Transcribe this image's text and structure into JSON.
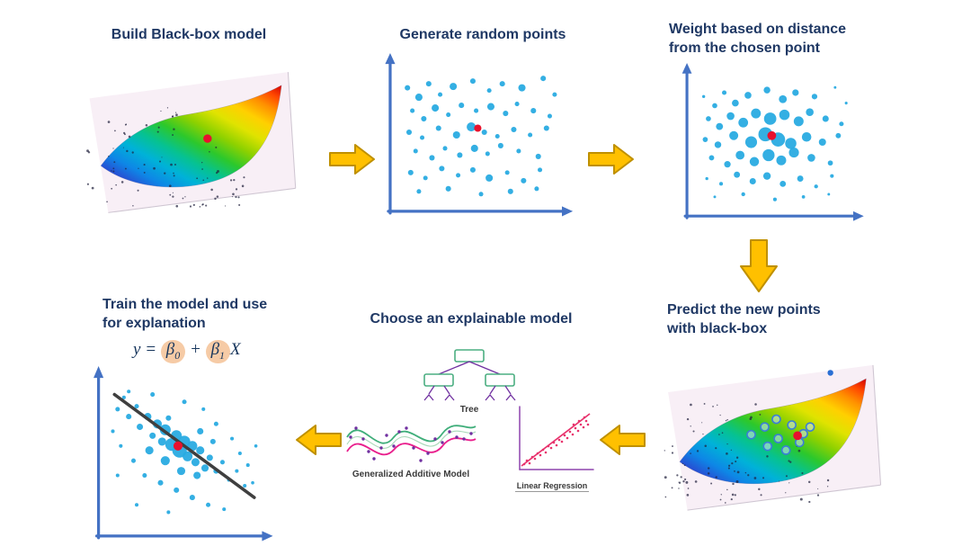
{
  "colors": {
    "title": "#1F3864",
    "dot": "#29ABE2",
    "red_dot": "#E8112D",
    "axis": "#4472C4",
    "arrow_fill": "#FFC000",
    "arrow_stroke": "#BF9000",
    "regression_line": "#3F3F3F",
    "beta_highlight": "#F6CBA6",
    "tree_box": "#4CAF82",
    "tree_line": "#7030A0",
    "gam_green": "#3FAE7A",
    "gam_pink": "#E91E8C",
    "gam_dot": "#7030A0",
    "lr_accent": "#E8336D",
    "lr_axis": "#8E44AD"
  },
  "steps": {
    "build": {
      "title": "Build Black-box model",
      "figure": {
        "seed": 7,
        "red": [
          140,
          95
        ]
      }
    },
    "generate": {
      "title": "Generate random points",
      "red_point": [
        48,
        55,
        4
      ],
      "points": [
        [
          5,
          85,
          3
        ],
        [
          12,
          78,
          4
        ],
        [
          18,
          88,
          3
        ],
        [
          25,
          80,
          2.5
        ],
        [
          33,
          86,
          4
        ],
        [
          45,
          90,
          3
        ],
        [
          55,
          83,
          2.5
        ],
        [
          63,
          88,
          3
        ],
        [
          75,
          85,
          4
        ],
        [
          88,
          92,
          3
        ],
        [
          95,
          80,
          2.5
        ],
        [
          8,
          68,
          2.5
        ],
        [
          15,
          62,
          3
        ],
        [
          22,
          70,
          4
        ],
        [
          30,
          65,
          2.5
        ],
        [
          38,
          72,
          3
        ],
        [
          47,
          68,
          2.5
        ],
        [
          56,
          71,
          4
        ],
        [
          65,
          66,
          3
        ],
        [
          72,
          73,
          2.5
        ],
        [
          82,
          68,
          3
        ],
        [
          92,
          64,
          2.5
        ],
        [
          6,
          52,
          3
        ],
        [
          14,
          48,
          2.5
        ],
        [
          24,
          55,
          3
        ],
        [
          35,
          50,
          4
        ],
        [
          44,
          56,
          5
        ],
        [
          52,
          52,
          3
        ],
        [
          60,
          49,
          2.5
        ],
        [
          70,
          54,
          3
        ],
        [
          80,
          50,
          2.5
        ],
        [
          90,
          55,
          3
        ],
        [
          10,
          38,
          2.5
        ],
        [
          20,
          33,
          3
        ],
        [
          28,
          40,
          2.5
        ],
        [
          37,
          35,
          3
        ],
        [
          46,
          40,
          4
        ],
        [
          54,
          36,
          2.5
        ],
        [
          62,
          42,
          3
        ],
        [
          73,
          38,
          2.5
        ],
        [
          85,
          34,
          3
        ],
        [
          7,
          22,
          3
        ],
        [
          16,
          18,
          2.5
        ],
        [
          26,
          25,
          3
        ],
        [
          36,
          20,
          2.5
        ],
        [
          45,
          24,
          3
        ],
        [
          55,
          18,
          4
        ],
        [
          66,
          22,
          2.5
        ],
        [
          76,
          16,
          3
        ],
        [
          86,
          24,
          2.5
        ],
        [
          12,
          8,
          2.5
        ],
        [
          30,
          10,
          3
        ],
        [
          50,
          6,
          2.5
        ],
        [
          68,
          8,
          3
        ],
        [
          84,
          10,
          2.5
        ]
      ]
    },
    "weight": {
      "title_line1": "Weight based on distance",
      "title_line2": "from the chosen point",
      "red_point": [
        48,
        55,
        5
      ],
      "points": [
        [
          5,
          85,
          1.7
        ],
        [
          12,
          78,
          2.9
        ],
        [
          18,
          88,
          2.6
        ],
        [
          25,
          80,
          3.9
        ],
        [
          33,
          86,
          3.9
        ],
        [
          45,
          90,
          3.8
        ],
        [
          55,
          83,
          4.5
        ],
        [
          63,
          88,
          3.7
        ],
        [
          75,
          85,
          3.2
        ],
        [
          88,
          92,
          1.5
        ],
        [
          95,
          80,
          1.6
        ],
        [
          8,
          68,
          2.9
        ],
        [
          15,
          62,
          4
        ],
        [
          22,
          70,
          4.4
        ],
        [
          30,
          65,
          5.5
        ],
        [
          38,
          72,
          5.6
        ],
        [
          47,
          68,
          7
        ],
        [
          56,
          71,
          5.9
        ],
        [
          65,
          66,
          5.6
        ],
        [
          72,
          73,
          4.4
        ],
        [
          82,
          68,
          3.6
        ],
        [
          92,
          64,
          2.6
        ],
        [
          6,
          52,
          2.9
        ],
        [
          14,
          48,
          3.8
        ],
        [
          24,
          55,
          5.1
        ],
        [
          35,
          50,
          6.7
        ],
        [
          44,
          56,
          8
        ],
        [
          52,
          52,
          8
        ],
        [
          60,
          49,
          6.4
        ],
        [
          70,
          54,
          5.4
        ],
        [
          80,
          50,
          4.1
        ],
        [
          90,
          55,
          3
        ],
        [
          10,
          38,
          3
        ],
        [
          20,
          33,
          3.7
        ],
        [
          28,
          40,
          5
        ],
        [
          37,
          35,
          5.3
        ],
        [
          46,
          40,
          6.8
        ],
        [
          54,
          36,
          5.6
        ],
        [
          62,
          42,
          5.7
        ],
        [
          73,
          38,
          4.4
        ],
        [
          85,
          34,
          2.9
        ],
        [
          7,
          22,
          1.7
        ],
        [
          16,
          18,
          2.1
        ],
        [
          26,
          25,
          3.5
        ],
        [
          36,
          20,
          3.6
        ],
        [
          45,
          24,
          4.3
        ],
        [
          55,
          18,
          3.5
        ],
        [
          66,
          22,
          3.5
        ],
        [
          76,
          16,
          2.2
        ],
        [
          86,
          24,
          2.1
        ],
        [
          12,
          8,
          1.5
        ],
        [
          30,
          10,
          2.2
        ],
        [
          50,
          6,
          2.1
        ],
        [
          68,
          8,
          1.9
        ],
        [
          84,
          10,
          1.5
        ]
      ]
    },
    "predict": {
      "title_line1": "Predict the new points",
      "title_line2": "with black-box",
      "figure": {
        "seed": 11,
        "red": [
          148,
          97
        ],
        "satellite": [
          182,
          32
        ],
        "rings": [
          [
            100,
            96
          ],
          [
            114,
            88
          ],
          [
            128,
            100
          ],
          [
            142,
            86
          ],
          [
            154,
            95
          ],
          [
            117,
            108
          ],
          [
            136,
            112
          ],
          [
            150,
            104
          ],
          [
            126,
            80
          ],
          [
            161,
            88
          ]
        ]
      }
    },
    "choose": {
      "title": "Choose an explainable model",
      "tree_label": "Tree",
      "gam_label": "Generalized Additive Model",
      "lr_label": "Linear Regression",
      "gam_dots": [
        [
          8,
          28
        ],
        [
          14,
          18
        ],
        [
          22,
          30
        ],
        [
          28,
          44
        ],
        [
          34,
          52
        ],
        [
          42,
          40
        ],
        [
          48,
          26
        ],
        [
          56,
          38
        ],
        [
          62,
          22
        ],
        [
          70,
          18
        ],
        [
          78,
          40
        ],
        [
          86,
          54
        ],
        [
          94,
          46
        ],
        [
          102,
          30
        ],
        [
          110,
          34
        ],
        [
          118,
          22
        ],
        [
          126,
          28
        ],
        [
          134,
          30
        ],
        [
          142,
          24
        ]
      ],
      "lr_dots": [
        [
          19,
          70
        ],
        [
          22,
          66
        ],
        [
          25,
          69
        ],
        [
          28,
          62
        ],
        [
          31,
          64
        ],
        [
          34,
          58
        ],
        [
          37,
          60
        ],
        [
          40,
          54
        ],
        [
          43,
          57
        ],
        [
          46,
          50
        ],
        [
          49,
          52
        ],
        [
          52,
          46
        ],
        [
          55,
          49
        ],
        [
          58,
          43
        ],
        [
          61,
          45
        ],
        [
          64,
          38
        ],
        [
          67,
          41
        ],
        [
          70,
          34
        ],
        [
          73,
          37
        ],
        [
          76,
          30
        ],
        [
          79,
          33
        ],
        [
          82,
          26
        ],
        [
          85,
          29
        ],
        [
          88,
          22
        ],
        [
          90,
          26
        ],
        [
          86,
          18
        ],
        [
          80,
          22
        ],
        [
          74,
          26
        ]
      ]
    },
    "train": {
      "title_line1": "Train the model and use",
      "title_line2": "for explanation",
      "equation": {
        "y": "y",
        "eq": " = ",
        "beta": "β",
        "sub0": "0",
        "plus": " + ",
        "sub1": "1",
        "x": "X"
      },
      "red_point": [
        46,
        55,
        5
      ],
      "line": [
        [
          6,
          90
        ],
        [
          94,
          20
        ]
      ],
      "points": [
        [
          8,
          80,
          2.5
        ],
        [
          12,
          88,
          2
        ],
        [
          15,
          75,
          3
        ],
        [
          20,
          82,
          2.5
        ],
        [
          22,
          68,
          3.5
        ],
        [
          27,
          75,
          4
        ],
        [
          30,
          62,
          3.5
        ],
        [
          33,
          70,
          5
        ],
        [
          36,
          58,
          4.5
        ],
        [
          38,
          66,
          6
        ],
        [
          40,
          74,
          3
        ],
        [
          42,
          56,
          7
        ],
        [
          45,
          62,
          6
        ],
        [
          47,
          52,
          8
        ],
        [
          50,
          58,
          6.5
        ],
        [
          52,
          48,
          5.5
        ],
        [
          55,
          55,
          5.5
        ],
        [
          57,
          44,
          4.5
        ],
        [
          60,
          52,
          4.5
        ],
        [
          63,
          40,
          4
        ],
        [
          66,
          47,
          3.5
        ],
        [
          70,
          38,
          3
        ],
        [
          74,
          44,
          2.5
        ],
        [
          78,
          32,
          2
        ],
        [
          83,
          38,
          2
        ],
        [
          88,
          28,
          2
        ],
        [
          10,
          55,
          2
        ],
        [
          18,
          45,
          2.5
        ],
        [
          25,
          35,
          2.5
        ],
        [
          35,
          30,
          3
        ],
        [
          45,
          25,
          3
        ],
        [
          55,
          20,
          3
        ],
        [
          65,
          15,
          2.5
        ],
        [
          75,
          12,
          2
        ],
        [
          15,
          92,
          2
        ],
        [
          30,
          90,
          2.5
        ],
        [
          50,
          85,
          2.5
        ],
        [
          62,
          80,
          2
        ],
        [
          70,
          70,
          2.5
        ],
        [
          80,
          60,
          2
        ],
        [
          85,
          50,
          2
        ],
        [
          90,
          42,
          2
        ],
        [
          5,
          65,
          2
        ],
        [
          8,
          35,
          2
        ],
        [
          20,
          15,
          2
        ],
        [
          40,
          10,
          2
        ],
        [
          60,
          65,
          3.5
        ],
        [
          68,
          58,
          3
        ],
        [
          58,
          35,
          4
        ],
        [
          48,
          38,
          4.5
        ],
        [
          38,
          45,
          5
        ],
        [
          28,
          52,
          4.5
        ],
        [
          93,
          30,
          1.8
        ],
        [
          95,
          55,
          1.8
        ]
      ]
    }
  }
}
